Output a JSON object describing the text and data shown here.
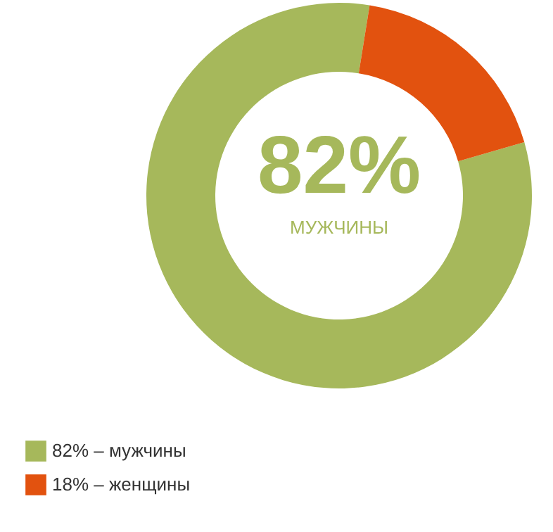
{
  "chart_data": {
    "type": "donut",
    "categories": [
      "82% – мужчины",
      "18% – женщины"
    ],
    "values": [
      82,
      18
    ],
    "colors": [
      "#a6b85b",
      "#e2520f"
    ],
    "annotations": [
      "82%",
      "МУЖЧИНЫ"
    ],
    "legend": "bottom left"
  }
}
